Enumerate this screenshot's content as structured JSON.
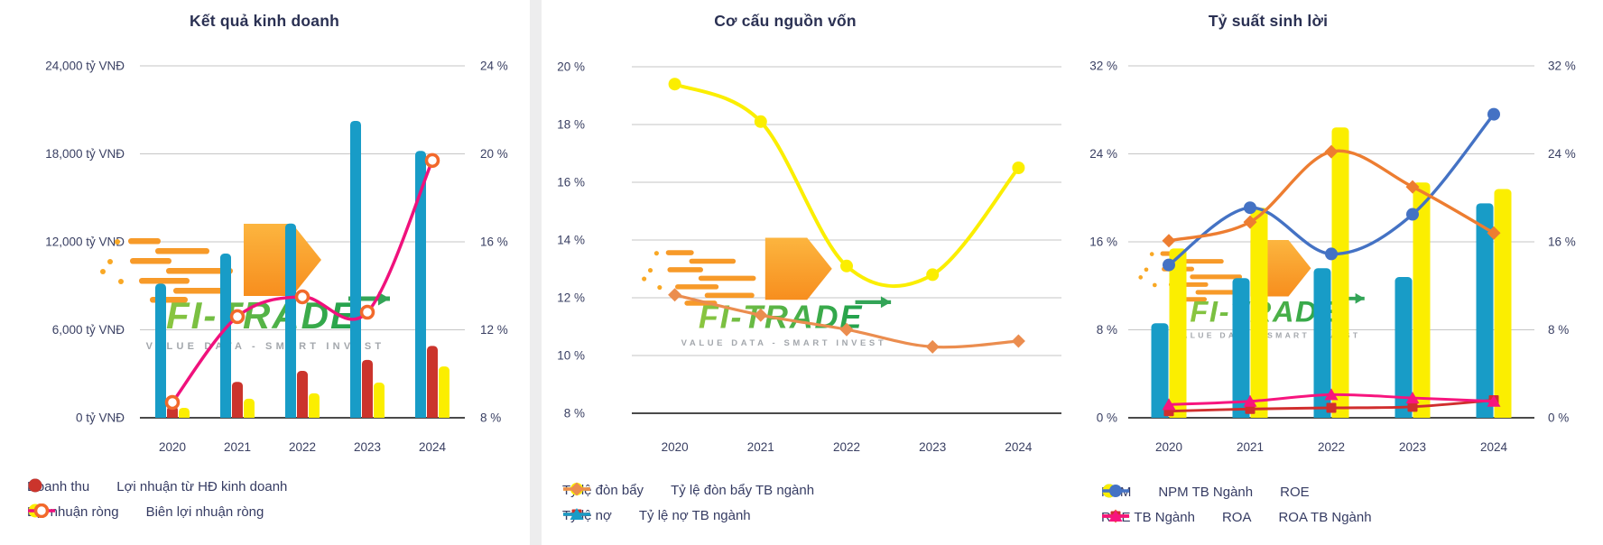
{
  "watermark": {
    "brand": "FI-TRADE",
    "tagline": "VALUE DATA - SMART INVEST"
  },
  "colors": {
    "teal": "#189CC7",
    "red": "#CB342C",
    "yellow": "#FBEE00",
    "pink": "#F0117C",
    "orange_ring": "#F2692B",
    "orange_light": "#EB8D4F",
    "blue": "#4472C4",
    "orange": "#ED7D31",
    "red2": "#D02E2E",
    "pink2": "#F7157E",
    "grid": "#C6C6C6",
    "axis": "#4A4A4A",
    "label": "#3A4063",
    "title": "#2B3153"
  },
  "chart_data": [
    {
      "type": "combo",
      "title": "Kết quả kinh doanh",
      "categories": [
        "2020",
        "2021",
        "2022",
        "2023",
        "2024"
      ],
      "left_axis": {
        "min": 0,
        "max": 24000,
        "tick_labels": [
          "24,000 tỷ VNĐ",
          "18,000 tỷ VNĐ",
          "12,000 tỷ VNĐ",
          "6,000 tỷ VNĐ",
          "0 tỷ VNĐ"
        ]
      },
      "right_axis": {
        "min": 8,
        "max": 24,
        "tick_labels": [
          "24 %",
          "20 %",
          "16 %",
          "12 %",
          "8 %"
        ]
      },
      "bar_series": [
        {
          "name": "Doanh thu",
          "color": "#189CC7",
          "axis": "left",
          "values": [
            9150,
            11200,
            13250,
            20250,
            18200
          ]
        },
        {
          "name": "Lợi nhuận từ HĐ kinh doanh",
          "color": "#CB342C",
          "axis": "left",
          "values": [
            800,
            2450,
            3200,
            3950,
            4900
          ]
        },
        {
          "name": "Lợi nhuận ròng",
          "color": "#FBEE00",
          "axis": "left",
          "values": [
            680,
            1300,
            1670,
            2400,
            3500
          ]
        }
      ],
      "line_series": [
        {
          "name": "Biên lợi nhuận ròng",
          "color": "#F0117C",
          "axis": "right",
          "marker": "ring",
          "marker_color": "#F2692B",
          "width": 3.5,
          "values": [
            8.7,
            12.6,
            13.5,
            12.8,
            19.7
          ]
        }
      ],
      "legend_rows": [
        [
          {
            "label": "Doanh thu",
            "marker": "dot",
            "color": "#189CC7"
          },
          {
            "label": "Lợi nhuận từ HĐ kinh doanh",
            "marker": "dot",
            "color": "#CB342C"
          }
        ],
        [
          {
            "label": "Lợi nhuận ròng",
            "marker": "dot",
            "color": "#FBEE00"
          },
          {
            "label": "Biên lợi nhuận ròng",
            "marker": "line-ring",
            "color": "#F0117C",
            "accent": "#F2692B"
          }
        ]
      ]
    },
    {
      "type": "line",
      "title": "Cơ cấu nguồn vốn",
      "categories": [
        "2020",
        "2021",
        "2022",
        "2023",
        "2024"
      ],
      "left_axis": {
        "min": 8,
        "max": 20,
        "tick_labels": [
          "20 %",
          "18 %",
          "16 %",
          "14 %",
          "12 %",
          "10 %",
          "8 %"
        ]
      },
      "bar_series": [],
      "line_series": [
        {
          "name": "Tỷ lệ đòn bẩy",
          "color": "#FBEE00",
          "axis": "left",
          "marker": "circle",
          "width": 4,
          "values": [
            19.4,
            18.1,
            13.1,
            12.8,
            16.5
          ]
        },
        {
          "name": "Tỷ lệ đòn bẩy TB ngành",
          "color": "#EB8D4F",
          "axis": "left",
          "marker": "diamond",
          "width": 3.2,
          "values": [
            12.1,
            11.4,
            10.9,
            10.3,
            10.5
          ]
        },
        {
          "name": "Tỷ lệ nợ",
          "color": "#CB342C",
          "axis": "left",
          "marker": "square",
          "width": 3,
          "values": null
        },
        {
          "name": "Tỷ lệ nợ TB ngành",
          "color": "#189CC7",
          "axis": "left",
          "marker": "triangle",
          "width": 3,
          "values": null
        }
      ],
      "legend_rows": [
        [
          {
            "label": "Tỷ lệ đòn bẩy",
            "marker": "line-circle",
            "color": "#FBEE00"
          },
          {
            "label": "Tỷ lệ đòn bẩy TB ngành",
            "marker": "line-diamond",
            "color": "#EB8D4F"
          }
        ],
        [
          {
            "label": "Tỷ lệ nợ",
            "marker": "line-square",
            "color": "#CB342C"
          },
          {
            "label": "Tỷ lệ nợ TB ngành",
            "marker": "line-triangle",
            "color": "#189CC7"
          }
        ]
      ]
    },
    {
      "type": "combo",
      "title": "Tỷ suất sinh lời",
      "categories": [
        "2020",
        "2021",
        "2022",
        "2023",
        "2024"
      ],
      "left_axis": {
        "min": 0,
        "max": 32,
        "tick_labels": [
          "32 %",
          "24 %",
          "16 %",
          "8 %",
          "0 %"
        ]
      },
      "right_axis": {
        "min": 0,
        "max": 32,
        "tick_labels": [
          "32 %",
          "24 %",
          "16 %",
          "8 %",
          "0 %"
        ]
      },
      "bar_series": [
        {
          "name": "NPM",
          "color": "#189CC7",
          "axis": "left",
          "values": [
            8.6,
            12.7,
            13.6,
            12.8,
            19.5
          ]
        },
        {
          "name": "NPM TB Ngành",
          "color": "#FBEE00",
          "axis": "left",
          "values": [
            15.4,
            19.1,
            26.4,
            21.4,
            20.8
          ]
        }
      ],
      "line_series": [
        {
          "name": "ROE",
          "color": "#4472C4",
          "axis": "left",
          "marker": "circle",
          "width": 3.4,
          "values": [
            13.9,
            19.1,
            14.9,
            18.5,
            27.6
          ]
        },
        {
          "name": "ROE TB Ngành",
          "color": "#ED7D31",
          "axis": "left",
          "marker": "diamond",
          "width": 3.4,
          "values": [
            16.1,
            17.8,
            24.2,
            21.0,
            16.8
          ]
        },
        {
          "name": "ROA",
          "color": "#D02E2E",
          "axis": "left",
          "marker": "square",
          "width": 3,
          "values": [
            0.6,
            0.8,
            0.9,
            1.0,
            1.6
          ]
        },
        {
          "name": "ROA TB Ngành",
          "color": "#F7157E",
          "axis": "left",
          "marker": "triangle",
          "width": 3,
          "values": [
            1.2,
            1.5,
            2.1,
            1.8,
            1.5
          ]
        }
      ],
      "legend_rows": [
        [
          {
            "label": "NPM",
            "marker": "dot",
            "color": "#189CC7"
          },
          {
            "label": "NPM TB Ngành",
            "marker": "dot",
            "color": "#FBEE00"
          },
          {
            "label": "ROE",
            "marker": "line-circle",
            "color": "#4472C4"
          }
        ],
        [
          {
            "label": "ROE TB Ngành",
            "marker": "line-diamond",
            "color": "#ED7D31"
          },
          {
            "label": "ROA",
            "marker": "line-square",
            "color": "#D02E2E"
          },
          {
            "label": "ROA TB Ngành",
            "marker": "line-triangle",
            "color": "#F7157E"
          }
        ]
      ]
    }
  ]
}
